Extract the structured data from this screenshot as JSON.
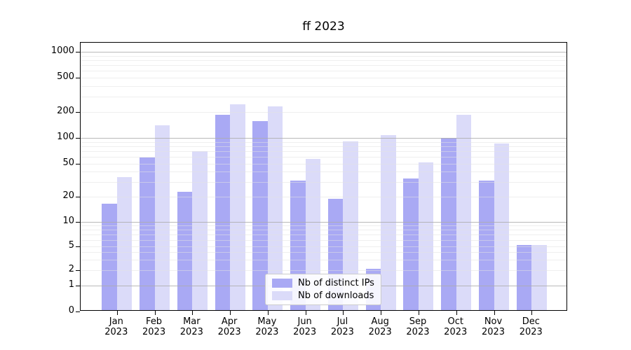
{
  "colors": {
    "distinct_ips_bar": "#a9a9f4",
    "downloads_bar": "#dbdbf9",
    "grid_major": "#adadad",
    "grid_minor": "#e4e4e4",
    "axis": "#000000",
    "legend_border": "#cccccc"
  },
  "legend": {
    "items": [
      {
        "label": "Nb of distinct IPs"
      },
      {
        "label": "Nb of downloads"
      }
    ]
  },
  "x_axis": {
    "months": [
      "Jan",
      "Feb",
      "Mar",
      "Apr",
      "May",
      "Jun",
      "Jul",
      "Aug",
      "Sep",
      "Oct",
      "Nov",
      "Dec"
    ],
    "year": "2023"
  },
  "y_axis": {
    "ticks": [
      0,
      1,
      2,
      5,
      10,
      20,
      50,
      100,
      200,
      500,
      1000
    ]
  },
  "chart_data": {
    "type": "bar",
    "title": "ff 2023",
    "categories": [
      "Jan 2023",
      "Feb 2023",
      "Mar 2023",
      "Apr 2023",
      "May 2023",
      "Jun 2023",
      "Jul 2023",
      "Aug 2023",
      "Sep 2023",
      "Oct 2023",
      "Nov 2023",
      "Dec 2023"
    ],
    "series": [
      {
        "name": "Nb of distinct IPs",
        "values": [
          16,
          57,
          22,
          180,
          150,
          30,
          18,
          2,
          32,
          97,
          30,
          5
        ]
      },
      {
        "name": "Nb of downloads",
        "values": [
          33,
          135,
          67,
          238,
          222,
          55,
          88,
          103,
          50,
          180,
          83,
          5
        ]
      }
    ],
    "xlabel": "",
    "ylabel": "",
    "yscale": "log-like",
    "yticks": [
      0,
      1,
      2,
      5,
      10,
      20,
      50,
      100,
      200,
      500,
      1000
    ],
    "ylim": [
      0,
      1200
    ],
    "grid": true,
    "grid_on_top_of_bars": true,
    "legend_position": "lower center"
  }
}
